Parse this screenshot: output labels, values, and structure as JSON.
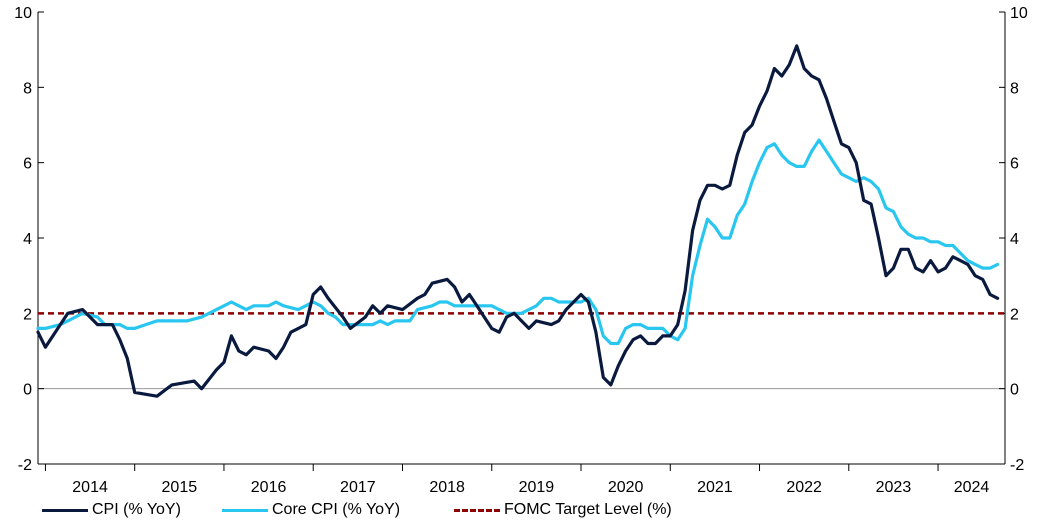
{
  "chart_data": {
    "type": "line",
    "title": "",
    "xlabel": "",
    "ylabel": "",
    "ylim": [
      -2,
      10
    ],
    "yticks": [
      -2,
      0,
      2,
      4,
      6,
      8,
      10
    ],
    "ytick_labels": [
      "-2",
      "0",
      "2",
      "4",
      "6",
      "8",
      "10"
    ],
    "x_start": "2013-12",
    "x_end": "2024-10",
    "xtick_labels": [
      "2014",
      "2015",
      "2016",
      "2017",
      "2018",
      "2019",
      "2020",
      "2021",
      "2022",
      "2023",
      "2024"
    ],
    "legend_position": "bottom",
    "reference_line": {
      "name": "FOMC Target Level (%)",
      "value": 2,
      "color": "#8B0000"
    },
    "series": [
      {
        "name": "CPI (% YoY)",
        "color": "#0a1a3f",
        "points": [
          [
            "2013-12",
            1.5
          ],
          [
            "2014-01",
            1.1
          ],
          [
            "2014-04",
            2.0
          ],
          [
            "2014-06",
            2.1
          ],
          [
            "2014-08",
            1.7
          ],
          [
            "2014-10",
            1.7
          ],
          [
            "2014-11",
            1.3
          ],
          [
            "2014-12",
            0.8
          ],
          [
            "2015-01",
            -0.1
          ],
          [
            "2015-04",
            -0.2
          ],
          [
            "2015-06",
            0.1
          ],
          [
            "2015-09",
            0.2
          ],
          [
            "2015-10",
            0.0
          ],
          [
            "2015-12",
            0.5
          ],
          [
            "2016-01",
            0.7
          ],
          [
            "2016-02",
            1.4
          ],
          [
            "2016-03",
            1.0
          ],
          [
            "2016-04",
            0.9
          ],
          [
            "2016-05",
            1.1
          ],
          [
            "2016-07",
            1.0
          ],
          [
            "2016-08",
            0.8
          ],
          [
            "2016-09",
            1.1
          ],
          [
            "2016-10",
            1.5
          ],
          [
            "2016-11",
            1.6
          ],
          [
            "2016-12",
            1.7
          ],
          [
            "2017-01",
            2.5
          ],
          [
            "2017-02",
            2.7
          ],
          [
            "2017-03",
            2.4
          ],
          [
            "2017-05",
            1.9
          ],
          [
            "2017-06",
            1.6
          ],
          [
            "2017-08",
            1.9
          ],
          [
            "2017-09",
            2.2
          ],
          [
            "2017-10",
            2.0
          ],
          [
            "2017-11",
            2.2
          ],
          [
            "2018-01",
            2.1
          ],
          [
            "2018-03",
            2.4
          ],
          [
            "2018-04",
            2.5
          ],
          [
            "2018-05",
            2.8
          ],
          [
            "2018-07",
            2.9
          ],
          [
            "2018-08",
            2.7
          ],
          [
            "2018-09",
            2.3
          ],
          [
            "2018-10",
            2.5
          ],
          [
            "2018-11",
            2.2
          ],
          [
            "2018-12",
            1.9
          ],
          [
            "2019-01",
            1.6
          ],
          [
            "2019-02",
            1.5
          ],
          [
            "2019-03",
            1.9
          ],
          [
            "2019-04",
            2.0
          ],
          [
            "2019-05",
            1.8
          ],
          [
            "2019-06",
            1.6
          ],
          [
            "2019-07",
            1.8
          ],
          [
            "2019-09",
            1.7
          ],
          [
            "2019-10",
            1.8
          ],
          [
            "2019-11",
            2.1
          ],
          [
            "2019-12",
            2.3
          ],
          [
            "2020-01",
            2.5
          ],
          [
            "2020-02",
            2.3
          ],
          [
            "2020-03",
            1.5
          ],
          [
            "2020-04",
            0.3
          ],
          [
            "2020-05",
            0.1
          ],
          [
            "2020-06",
            0.6
          ],
          [
            "2020-07",
            1.0
          ],
          [
            "2020-08",
            1.3
          ],
          [
            "2020-09",
            1.4
          ],
          [
            "2020-10",
            1.2
          ],
          [
            "2020-11",
            1.2
          ],
          [
            "2020-12",
            1.4
          ],
          [
            "2021-01",
            1.4
          ],
          [
            "2021-02",
            1.7
          ],
          [
            "2021-03",
            2.6
          ],
          [
            "2021-04",
            4.2
          ],
          [
            "2021-05",
            5.0
          ],
          [
            "2021-06",
            5.4
          ],
          [
            "2021-07",
            5.4
          ],
          [
            "2021-08",
            5.3
          ],
          [
            "2021-09",
            5.4
          ],
          [
            "2021-10",
            6.2
          ],
          [
            "2021-11",
            6.8
          ],
          [
            "2021-12",
            7.0
          ],
          [
            "2022-01",
            7.5
          ],
          [
            "2022-02",
            7.9
          ],
          [
            "2022-03",
            8.5
          ],
          [
            "2022-04",
            8.3
          ],
          [
            "2022-05",
            8.6
          ],
          [
            "2022-06",
            9.1
          ],
          [
            "2022-07",
            8.5
          ],
          [
            "2022-08",
            8.3
          ],
          [
            "2022-09",
            8.2
          ],
          [
            "2022-10",
            7.7
          ],
          [
            "2022-11",
            7.1
          ],
          [
            "2022-12",
            6.5
          ],
          [
            "2023-01",
            6.4
          ],
          [
            "2023-02",
            6.0
          ],
          [
            "2023-03",
            5.0
          ],
          [
            "2023-04",
            4.9
          ],
          [
            "2023-05",
            4.0
          ],
          [
            "2023-06",
            3.0
          ],
          [
            "2023-07",
            3.2
          ],
          [
            "2023-08",
            3.7
          ],
          [
            "2023-09",
            3.7
          ],
          [
            "2023-10",
            3.2
          ],
          [
            "2023-11",
            3.1
          ],
          [
            "2023-12",
            3.4
          ],
          [
            "2024-01",
            3.1
          ],
          [
            "2024-02",
            3.2
          ],
          [
            "2024-03",
            3.5
          ],
          [
            "2024-04",
            3.4
          ],
          [
            "2024-05",
            3.3
          ],
          [
            "2024-06",
            3.0
          ],
          [
            "2024-07",
            2.9
          ],
          [
            "2024-08",
            2.5
          ],
          [
            "2024-09",
            2.4
          ]
        ]
      },
      {
        "name": "Core CPI (% YoY)",
        "color": "#29c6f0",
        "points": [
          [
            "2013-12",
            1.6
          ],
          [
            "2014-01",
            1.6
          ],
          [
            "2014-03",
            1.7
          ],
          [
            "2014-04",
            1.8
          ],
          [
            "2014-06",
            2.0
          ],
          [
            "2014-08",
            1.9
          ],
          [
            "2014-09",
            1.7
          ],
          [
            "2014-11",
            1.7
          ],
          [
            "2014-12",
            1.6
          ],
          [
            "2015-01",
            1.6
          ],
          [
            "2015-04",
            1.8
          ],
          [
            "2015-06",
            1.8
          ],
          [
            "2015-08",
            1.8
          ],
          [
            "2015-10",
            1.9
          ],
          [
            "2015-12",
            2.1
          ],
          [
            "2016-01",
            2.2
          ],
          [
            "2016-02",
            2.3
          ],
          [
            "2016-03",
            2.2
          ],
          [
            "2016-04",
            2.1
          ],
          [
            "2016-05",
            2.2
          ],
          [
            "2016-07",
            2.2
          ],
          [
            "2016-08",
            2.3
          ],
          [
            "2016-09",
            2.2
          ],
          [
            "2016-11",
            2.1
          ],
          [
            "2016-12",
            2.2
          ],
          [
            "2017-01",
            2.3
          ],
          [
            "2017-02",
            2.2
          ],
          [
            "2017-03",
            2.0
          ],
          [
            "2017-04",
            1.9
          ],
          [
            "2017-05",
            1.7
          ],
          [
            "2017-07",
            1.7
          ],
          [
            "2017-08",
            1.7
          ],
          [
            "2017-09",
            1.7
          ],
          [
            "2017-10",
            1.8
          ],
          [
            "2017-11",
            1.7
          ],
          [
            "2017-12",
            1.8
          ],
          [
            "2018-01",
            1.8
          ],
          [
            "2018-02",
            1.8
          ],
          [
            "2018-03",
            2.1
          ],
          [
            "2018-05",
            2.2
          ],
          [
            "2018-06",
            2.3
          ],
          [
            "2018-07",
            2.3
          ],
          [
            "2018-08",
            2.2
          ],
          [
            "2018-09",
            2.2
          ],
          [
            "2018-11",
            2.2
          ],
          [
            "2018-12",
            2.2
          ],
          [
            "2019-01",
            2.2
          ],
          [
            "2019-03",
            2.0
          ],
          [
            "2019-05",
            2.0
          ],
          [
            "2019-06",
            2.1
          ],
          [
            "2019-07",
            2.2
          ],
          [
            "2019-08",
            2.4
          ],
          [
            "2019-09",
            2.4
          ],
          [
            "2019-10",
            2.3
          ],
          [
            "2019-11",
            2.3
          ],
          [
            "2019-12",
            2.3
          ],
          [
            "2020-01",
            2.3
          ],
          [
            "2020-02",
            2.4
          ],
          [
            "2020-03",
            2.1
          ],
          [
            "2020-04",
            1.4
          ],
          [
            "2020-05",
            1.2
          ],
          [
            "2020-06",
            1.2
          ],
          [
            "2020-07",
            1.6
          ],
          [
            "2020-08",
            1.7
          ],
          [
            "2020-09",
            1.7
          ],
          [
            "2020-10",
            1.6
          ],
          [
            "2020-11",
            1.6
          ],
          [
            "2020-12",
            1.6
          ],
          [
            "2021-01",
            1.4
          ],
          [
            "2021-02",
            1.3
          ],
          [
            "2021-03",
            1.6
          ],
          [
            "2021-04",
            3.0
          ],
          [
            "2021-05",
            3.8
          ],
          [
            "2021-06",
            4.5
          ],
          [
            "2021-07",
            4.3
          ],
          [
            "2021-08",
            4.0
          ],
          [
            "2021-09",
            4.0
          ],
          [
            "2021-10",
            4.6
          ],
          [
            "2021-11",
            4.9
          ],
          [
            "2021-12",
            5.5
          ],
          [
            "2022-01",
            6.0
          ],
          [
            "2022-02",
            6.4
          ],
          [
            "2022-03",
            6.5
          ],
          [
            "2022-04",
            6.2
          ],
          [
            "2022-05",
            6.0
          ],
          [
            "2022-06",
            5.9
          ],
          [
            "2022-07",
            5.9
          ],
          [
            "2022-08",
            6.3
          ],
          [
            "2022-09",
            6.6
          ],
          [
            "2022-10",
            6.3
          ],
          [
            "2022-11",
            6.0
          ],
          [
            "2022-12",
            5.7
          ],
          [
            "2023-01",
            5.6
          ],
          [
            "2023-02",
            5.5
          ],
          [
            "2023-03",
            5.6
          ],
          [
            "2023-04",
            5.5
          ],
          [
            "2023-05",
            5.3
          ],
          [
            "2023-06",
            4.8
          ],
          [
            "2023-07",
            4.7
          ],
          [
            "2023-08",
            4.3
          ],
          [
            "2023-09",
            4.1
          ],
          [
            "2023-10",
            4.0
          ],
          [
            "2023-11",
            4.0
          ],
          [
            "2023-12",
            3.9
          ],
          [
            "2024-01",
            3.9
          ],
          [
            "2024-02",
            3.8
          ],
          [
            "2024-03",
            3.8
          ],
          [
            "2024-04",
            3.6
          ],
          [
            "2024-05",
            3.4
          ],
          [
            "2024-06",
            3.3
          ],
          [
            "2024-07",
            3.2
          ],
          [
            "2024-08",
            3.2
          ],
          [
            "2024-09",
            3.3
          ]
        ]
      }
    ]
  },
  "legend": [
    {
      "label": "CPI (% YoY)",
      "color": "#0a1a3f",
      "style": "solid"
    },
    {
      "label": "Core CPI (% YoY)",
      "color": "#29c6f0",
      "style": "solid"
    },
    {
      "label": "FOMC Target Level (%)",
      "color": "#8B0000",
      "style": "dashed"
    }
  ]
}
